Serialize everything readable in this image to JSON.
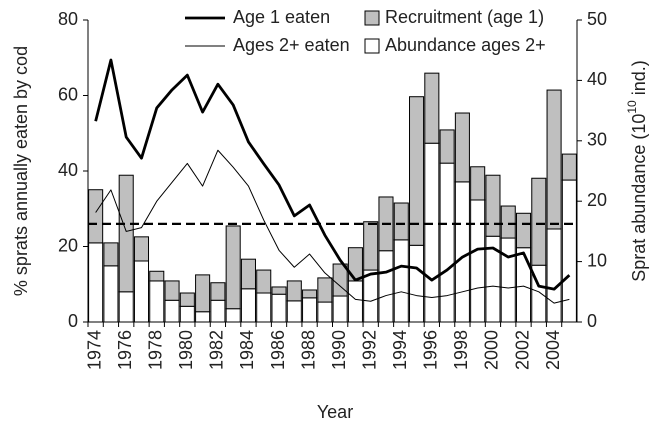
{
  "chart_data": {
    "type": "bar-line",
    "categories": [
      "1974",
      null,
      "1976",
      null,
      "1978",
      null,
      "1980",
      null,
      "1982",
      null,
      "1984",
      null,
      "1986",
      null,
      "1988",
      null,
      "1990",
      null,
      "1992",
      null,
      "1994",
      null,
      "1996",
      null,
      "1998",
      null,
      "2000",
      null,
      "2002",
      null,
      "2004",
      null
    ],
    "xlabel": "Year",
    "ylabel": "% sprats annually eaten by cod",
    "y2label": "Sprat abundance (10",
    "y2label_sup": "10",
    "y2label_end": " ind.)",
    "ylim": [
      0,
      80
    ],
    "yticks": [
      0,
      20,
      40,
      60,
      80
    ],
    "y2lim": [
      0,
      50
    ],
    "y2ticks": [
      0,
      10,
      20,
      30,
      40,
      50
    ],
    "hline": 26,
    "legend": "top",
    "series": [
      {
        "name": "Age 1 eaten",
        "kind": "line",
        "color": "#000000",
        "width": 2.8,
        "values": [
          53.2,
          69.4,
          49,
          43.4,
          56.7,
          61.5,
          65.4,
          55.6,
          63,
          57.5,
          47.7,
          41.9,
          36.3,
          28.1,
          31,
          23,
          16.4,
          11.1,
          12.7,
          13.2,
          14.8,
          14.3,
          11.1,
          13.8,
          17.2,
          19.3,
          19.6,
          17.2,
          18.3,
          9.5,
          8.7,
          12.4
        ]
      },
      {
        "name": "Ages 2+ eaten",
        "kind": "line",
        "color": "#000000",
        "width": 1,
        "values": [
          29,
          35,
          24,
          25,
          32,
          37,
          42,
          36,
          45.5,
          41,
          36,
          27,
          19,
          14.5,
          18,
          13,
          9.5,
          6,
          5.5,
          7,
          8,
          7,
          6.5,
          7,
          8,
          9,
          9.5,
          9,
          9.5,
          8,
          5,
          6
        ]
      },
      {
        "name": "Recruitment (age 1)",
        "kind": "bar",
        "axis": "y2",
        "color": "#bfbfbf",
        "values": [
          8.8,
          3.8,
          19.3,
          4.0,
          1.6,
          3.2,
          2.2,
          6.1,
          2.9,
          13.7,
          4.9,
          3.8,
          1.2,
          3.3,
          1.3,
          4.0,
          5.3,
          5.5,
          8.0,
          8.9,
          6.1,
          24.6,
          11.6,
          5.5,
          11.4,
          5.5,
          10.1,
          5.3,
          5.7,
          14.4,
          23.0,
          4.3
        ]
      },
      {
        "name": "Abundance ages 2+",
        "kind": "bar",
        "axis": "y2",
        "color": "#ffffff",
        "values": [
          13.1,
          9.3,
          5.0,
          10.1,
          6.8,
          3.6,
          2.6,
          1.7,
          3.6,
          2.2,
          5.5,
          4.8,
          4.6,
          3.5,
          4.0,
          3.3,
          4.3,
          6.8,
          8.6,
          11.8,
          13.6,
          12.7,
          29.6,
          26.3,
          23.2,
          20.2,
          14.2,
          13.9,
          12.3,
          9.4,
          15.4,
          23.5
        ]
      }
    ]
  }
}
